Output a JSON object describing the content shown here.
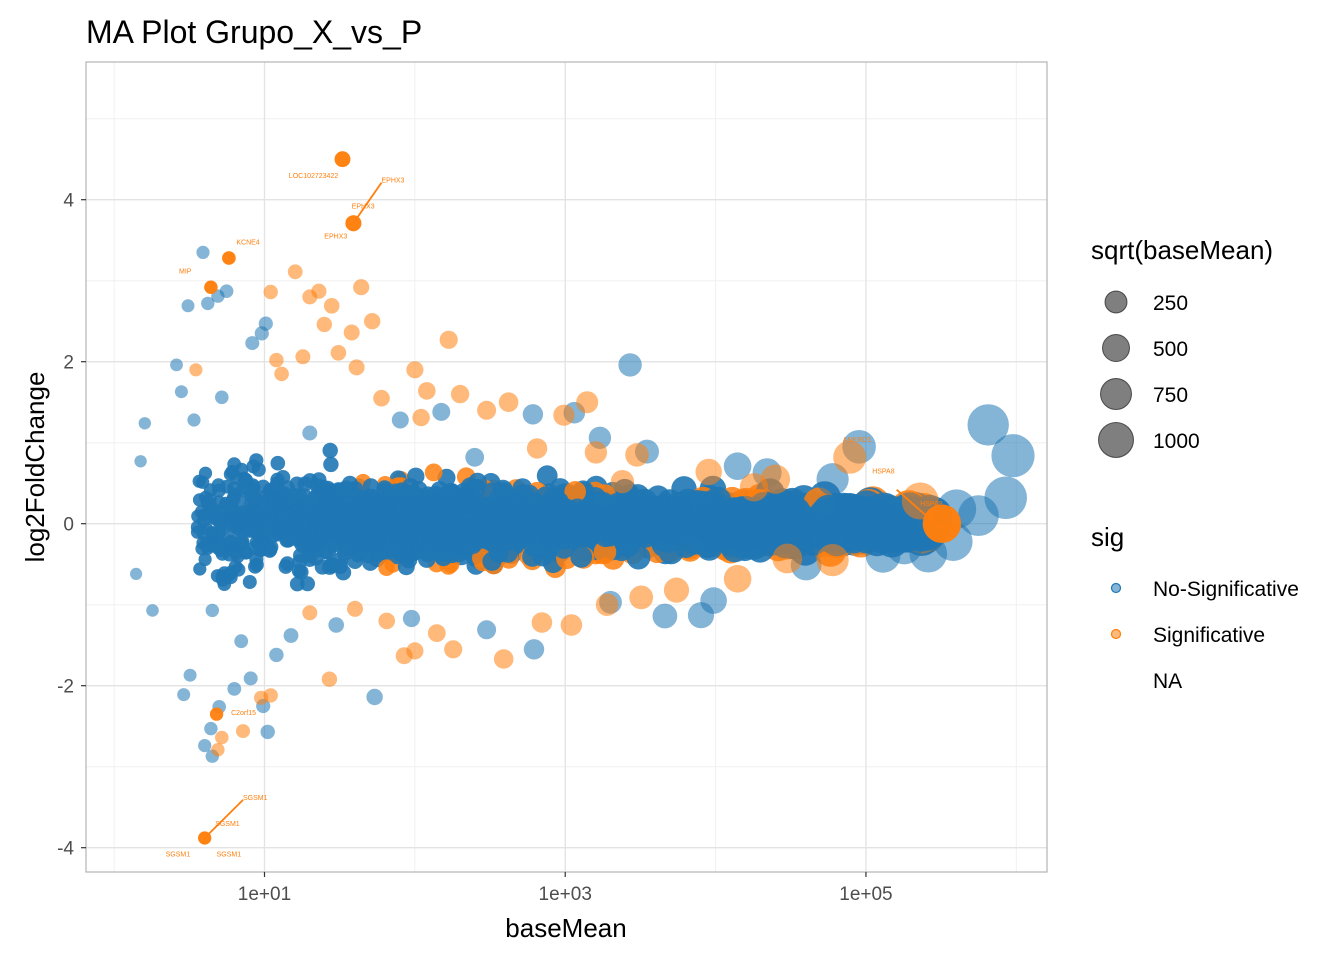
{
  "chart_data": {
    "type": "scatter",
    "title": "MA Plot Grupo_X_vs_P",
    "xlabel": "baseMean",
    "ylabel": "log2FoldChange",
    "x_scale": "log10",
    "xlim": [
      0.65,
      1600000
    ],
    "ylim": [
      -4.3,
      5.7
    ],
    "x_ticks": [
      {
        "value": 10,
        "label": "1e+01"
      },
      {
        "value": 1000,
        "label": "1e+03"
      },
      {
        "value": 100000,
        "label": "1e+05"
      }
    ],
    "y_ticks": [
      {
        "value": -4,
        "label": "-4"
      },
      {
        "value": -2,
        "label": "-2"
      },
      {
        "value": 0,
        "label": "0"
      },
      {
        "value": 2,
        "label": "2"
      },
      {
        "value": 4,
        "label": "4"
      }
    ],
    "grid": true,
    "legend_position": "right",
    "colors": {
      "No-Significative": "#1f77b4",
      "Significative": "#ff7f0e"
    },
    "size_legend": {
      "title": "sqrt(baseMean)",
      "entries": [
        {
          "label": "250",
          "value": 250
        },
        {
          "label": "500",
          "value": 500
        },
        {
          "label": "750",
          "value": 750
        },
        {
          "label": "1000",
          "value": 1000
        }
      ]
    },
    "color_legend": {
      "title": "sig",
      "entries": [
        {
          "label": "No-Significative",
          "color": "#1f77b4"
        },
        {
          "label": "Significative",
          "color": "#ff7f0e"
        },
        {
          "label": "NA",
          "color": ""
        }
      ]
    },
    "labeled_points": [
      {
        "label": "EPHX3",
        "x": 39,
        "y": 3.71,
        "sig": "Significative"
      },
      {
        "label": "SGSM1",
        "x": 4.0,
        "y": -3.88,
        "sig": "Significative"
      },
      {
        "label": "HSPA8",
        "x": 320000,
        "y": 0.0,
        "sig": "Significative"
      },
      {
        "label": "LOC102723422",
        "x": 33,
        "y": 4.5,
        "sig": "Significative"
      },
      {
        "label": "KCNE4",
        "x": 5.8,
        "y": 3.28,
        "sig": "Significative"
      },
      {
        "label": "MIP",
        "x": 4.4,
        "y": 2.92,
        "sig": "Significative"
      },
      {
        "label": "C2orf15",
        "x": 4.8,
        "y": -2.35,
        "sig": "Significative"
      }
    ],
    "annotations": [
      {
        "text": "LOC102723422",
        "x": 14.5,
        "y": 4.27
      },
      {
        "text": "EPHX3",
        "x": 60,
        "y": 4.21
      },
      {
        "text": "EPHX3",
        "x": 38,
        "y": 3.89
      },
      {
        "text": "EPHX3",
        "x": 25,
        "y": 3.52
      },
      {
        "text": "KCNE4",
        "x": 6.5,
        "y": 3.45
      },
      {
        "text": "MIP",
        "x": 2.7,
        "y": 3.09
      },
      {
        "text": "C2orf15",
        "x": 6.0,
        "y": -2.36
      },
      {
        "text": "SGSM1",
        "x": 7.2,
        "y": -3.41
      },
      {
        "text": "SGSM1",
        "x": 4.7,
        "y": -3.73
      },
      {
        "text": "SGSM1",
        "x": 2.2,
        "y": -4.11
      },
      {
        "text": "SGSM1",
        "x": 4.8,
        "y": -4.11
      },
      {
        "text": "ANKRD1",
        "x": 70000,
        "y": 1.01
      },
      {
        "text": "HSPA8",
        "x": 110000,
        "y": 0.62
      },
      {
        "text": "HSPA8",
        "x": 230000,
        "y": 0.22
      },
      {
        "text": "HSPA8",
        "x": 300000,
        "y": -0.07
      }
    ],
    "series": [
      {
        "name": "No-Significative",
        "points": [
          [
            2.6,
            1.96
          ],
          [
            3.9,
            3.35
          ],
          [
            4.2,
            2.72
          ],
          [
            4.9,
            2.81
          ],
          [
            3.1,
            2.69
          ],
          [
            5.6,
            2.87
          ],
          [
            9.6,
            2.35
          ],
          [
            8.3,
            2.23
          ],
          [
            10.2,
            2.47
          ],
          [
            2.8,
            1.63
          ],
          [
            4.0,
            -2.74
          ],
          [
            4.4,
            -2.53
          ],
          [
            4.5,
            -2.87
          ],
          [
            5.0,
            -2.26
          ],
          [
            6.3,
            -2.04
          ],
          [
            8.1,
            -1.91
          ],
          [
            9.8,
            -2.25
          ],
          [
            10.5,
            -2.57
          ],
          [
            3.2,
            -1.87
          ],
          [
            2.9,
            -2.11
          ],
          [
            54,
            -2.14
          ],
          [
            2700,
            1.96
          ],
          [
            950000,
            0.84
          ],
          [
            650000,
            1.22
          ],
          [
            850000,
            0.32
          ],
          [
            560000,
            0.1
          ],
          [
            400000,
            0.18
          ],
          [
            380000,
            -0.22
          ],
          [
            260000,
            -0.37
          ],
          [
            180000,
            -0.28
          ],
          [
            130000,
            -0.39
          ],
          [
            90000,
            0.95
          ],
          [
            8000,
            -1.13
          ],
          [
            9700,
            -0.95
          ],
          [
            4600,
            -1.14
          ],
          [
            1700,
            1.06
          ],
          [
            1150,
            1.37
          ],
          [
            620,
            -1.55
          ],
          [
            610,
            1.35
          ],
          [
            150,
            1.38
          ],
          [
            15,
            -1.38
          ],
          [
            12,
            -1.62
          ],
          [
            7,
            -1.45
          ],
          [
            4.5,
            -1.07
          ],
          [
            3.4,
            1.28
          ],
          [
            5.2,
            1.56
          ],
          [
            20,
            1.12
          ],
          [
            30,
            -1.25
          ],
          [
            80,
            1.28
          ],
          [
            95,
            -1.17
          ],
          [
            300,
            -1.31
          ],
          [
            250,
            0.82
          ],
          [
            2000,
            -0.97
          ],
          [
            3500,
            0.89
          ],
          [
            14000,
            0.71
          ],
          [
            22000,
            0.63
          ],
          [
            40000,
            -0.51
          ],
          [
            60000,
            0.55
          ],
          [
            1.6,
            1.24
          ],
          [
            1.8,
            -1.07
          ],
          [
            1.5,
            0.77
          ],
          [
            1.4,
            -0.62
          ]
        ]
      },
      {
        "name": "Significative",
        "points": [
          [
            33,
            4.5
          ],
          [
            39,
            3.71
          ],
          [
            5.8,
            3.28
          ],
          [
            4.4,
            2.92
          ],
          [
            16,
            3.11
          ],
          [
            11,
            2.86
          ],
          [
            20,
            2.8
          ],
          [
            23,
            2.87
          ],
          [
            28,
            2.69
          ],
          [
            44,
            2.92
          ],
          [
            52,
            2.5
          ],
          [
            38,
            2.36
          ],
          [
            25,
            2.46
          ],
          [
            18,
            2.06
          ],
          [
            31,
            2.11
          ],
          [
            41,
            1.93
          ],
          [
            12,
            2.02
          ],
          [
            168,
            2.27
          ],
          [
            13,
            1.85
          ],
          [
            60,
            1.55
          ],
          [
            100,
            1.9
          ],
          [
            120,
            1.64
          ],
          [
            110,
            1.31
          ],
          [
            300,
            1.4
          ],
          [
            980,
            1.34
          ],
          [
            1400,
            1.5
          ],
          [
            1600,
            0.88
          ],
          [
            3000,
            0.85
          ],
          [
            18000,
            0.45
          ],
          [
            78000,
            0.82
          ],
          [
            230000,
            0.28
          ],
          [
            320000,
            0.0
          ],
          [
            4.0,
            -3.88
          ],
          [
            5.2,
            -2.64
          ],
          [
            4.9,
            -2.79
          ],
          [
            7.2,
            -2.56
          ],
          [
            9.5,
            -2.15
          ],
          [
            11,
            -2.12
          ],
          [
            27,
            -1.92
          ],
          [
            85,
            -1.63
          ],
          [
            100,
            -1.57
          ],
          [
            180,
            -1.55
          ],
          [
            390,
            -1.67
          ],
          [
            1100,
            -1.25
          ],
          [
            1900,
            -1.0
          ],
          [
            3200,
            -0.91
          ],
          [
            5500,
            -0.82
          ],
          [
            30000,
            -0.43
          ],
          [
            60000,
            -0.45
          ],
          [
            200,
            1.6
          ],
          [
            420,
            1.5
          ],
          [
            650,
            0.93
          ],
          [
            2400,
            0.52
          ],
          [
            9000,
            0.64
          ],
          [
            25000,
            0.55
          ],
          [
            40,
            -1.05
          ],
          [
            65,
            -1.2
          ],
          [
            140,
            -1.35
          ],
          [
            700,
            -1.22
          ],
          [
            14000,
            -0.68
          ],
          [
            3.5,
            1.9
          ],
          [
            20,
            -1.1
          ]
        ]
      }
    ]
  }
}
